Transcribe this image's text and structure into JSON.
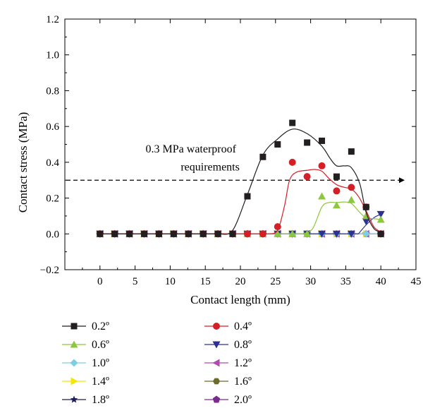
{
  "chart_data": {
    "type": "scatter",
    "title": "",
    "xlabel": "Contact length (mm)",
    "ylabel": "Contact stress (MPa)",
    "xlim": [
      -5,
      45
    ],
    "ylim": [
      -0.2,
      1.2
    ],
    "xticks": [
      0,
      5,
      10,
      15,
      20,
      25,
      30,
      35,
      40,
      45
    ],
    "yticks": [
      -0.2,
      0.0,
      0.2,
      0.4,
      0.6,
      0.8,
      1.0,
      1.2
    ],
    "ytick_labels": [
      "−0.2",
      "0.0",
      "0.2",
      "0.4",
      "0.6",
      "0.8",
      "1.0",
      "1.2"
    ],
    "grid": false,
    "legend_position": "bottom",
    "x": [
      0,
      2.1,
      4.2,
      6.3,
      8.4,
      10.5,
      12.6,
      14.7,
      16.8,
      18.9,
      21.0,
      23.2,
      25.3,
      27.4,
      29.5,
      31.6,
      33.7,
      35.8,
      37.9,
      40.0
    ],
    "series": [
      {
        "name": "0.2º",
        "marker": "square",
        "color": "#231f20",
        "line_color": "#231f20",
        "values": [
          0,
          0,
          0,
          0,
          0,
          0,
          0,
          0,
          0,
          0,
          0.21,
          0.43,
          0.5,
          0.62,
          0.51,
          0.52,
          0.32,
          0.46,
          0.15,
          0
        ],
        "fit": [
          [
            17.0,
            0
          ],
          [
            18.9,
            0.02
          ],
          [
            21.0,
            0.22
          ],
          [
            23.2,
            0.44
          ],
          [
            25.3,
            0.53
          ],
          [
            27.4,
            0.585
          ],
          [
            29.5,
            0.56
          ],
          [
            31.6,
            0.49
          ],
          [
            32.8,
            0.42
          ],
          [
            33.7,
            0.38
          ],
          [
            34.8,
            0.38
          ],
          [
            35.8,
            0.37
          ],
          [
            37.0,
            0.28
          ],
          [
            37.9,
            0.12
          ],
          [
            39.0,
            0.03
          ],
          [
            40.0,
            0.01
          ]
        ]
      },
      {
        "name": "0.4º",
        "marker": "circle",
        "color": "#d51f26",
        "line_color": "#d51f26",
        "values": [
          0,
          0,
          0,
          0,
          0,
          0,
          0,
          0,
          0,
          0,
          0,
          0,
          0.04,
          0.4,
          0.32,
          0.38,
          0.24,
          0.26,
          0.15,
          0
        ],
        "fit": [
          [
            24.0,
            0
          ],
          [
            25.3,
            0.02
          ],
          [
            26.3,
            0.16
          ],
          [
            27.0,
            0.3
          ],
          [
            28.0,
            0.345
          ],
          [
            29.5,
            0.355
          ],
          [
            30.6,
            0.36
          ],
          [
            31.6,
            0.35
          ],
          [
            32.6,
            0.31
          ],
          [
            33.7,
            0.275
          ],
          [
            34.8,
            0.26
          ],
          [
            35.8,
            0.25
          ],
          [
            36.8,
            0.21
          ],
          [
            37.9,
            0.13
          ],
          [
            39.0,
            0.04
          ],
          [
            40.0,
            0.01
          ]
        ]
      },
      {
        "name": "0.6º",
        "marker": "triangle-up",
        "color": "#8dc63f",
        "line_color": "#8dc63f",
        "values": [
          0,
          0,
          0,
          0,
          0,
          0,
          0,
          0,
          0,
          0,
          0,
          0,
          0,
          0,
          0,
          0.21,
          0.16,
          0.19,
          0.1,
          0.08
        ],
        "fit": [
          [
            29.0,
            0
          ],
          [
            30.3,
            0.03
          ],
          [
            31.6,
            0.15
          ],
          [
            32.6,
            0.175
          ],
          [
            33.7,
            0.175
          ],
          [
            34.8,
            0.178
          ],
          [
            35.8,
            0.17
          ],
          [
            37.0,
            0.12
          ],
          [
            37.9,
            0.09
          ],
          [
            39.0,
            0.085
          ],
          [
            40.0,
            0.08
          ]
        ]
      },
      {
        "name": "0.8º",
        "marker": "triangle-down",
        "color": "#2e3192",
        "line_color": "#2e3192",
        "values": [
          0,
          0,
          0,
          0,
          0,
          0,
          0,
          0,
          0,
          0,
          0,
          0,
          0,
          0,
          0,
          0,
          0,
          0,
          0.07,
          0.11
        ],
        "fit": [
          [
            36.8,
            0
          ],
          [
            37.9,
            0.05
          ],
          [
            39.0,
            0.09
          ],
          [
            40.0,
            0.11
          ]
        ]
      },
      {
        "name": "1.0º",
        "marker": "diamond",
        "color": "#7fcde3",
        "line_color": "#7fcde3",
        "values": [
          0,
          0,
          0,
          0,
          0,
          0,
          0,
          0,
          0,
          0,
          0,
          0,
          0,
          0,
          0,
          0,
          0,
          0,
          0,
          0
        ]
      },
      {
        "name": "1.2º",
        "marker": "triangle-left",
        "color": "#b04bb0",
        "line_color": "#b04bb0",
        "values": [
          0,
          0,
          0,
          0,
          0,
          0,
          0,
          0,
          0,
          0,
          0,
          0,
          0,
          0,
          0,
          0,
          0,
          0,
          0,
          0
        ]
      },
      {
        "name": "1.4º",
        "marker": "triangle-right",
        "color": "#f5e600",
        "line_color": "#f5e600",
        "values": [
          0,
          0,
          0,
          0,
          0,
          0,
          0,
          0,
          0,
          0,
          0,
          0,
          0,
          0,
          0,
          0,
          0,
          0,
          0,
          0
        ]
      },
      {
        "name": "1.6º",
        "marker": "hexagon",
        "color": "#6b6b2a",
        "line_color": "#6b6b2a",
        "values": [
          0,
          0,
          0,
          0,
          0,
          0,
          0,
          0,
          0,
          0,
          0,
          0,
          0,
          0,
          0,
          0,
          0,
          0,
          0,
          0
        ]
      },
      {
        "name": "1.8º",
        "marker": "star",
        "color": "#1c1c5a",
        "line_color": "#1c1c5a",
        "values": [
          0,
          0,
          0,
          0,
          0,
          0,
          0,
          0,
          0,
          0,
          0,
          0,
          0,
          0,
          0,
          0,
          0,
          0,
          0,
          0
        ]
      },
      {
        "name": "2.0º",
        "marker": "pentagon",
        "color": "#7b2a8e",
        "line_color": "#7b2a8e",
        "values": [
          0,
          0,
          0,
          0,
          0,
          0,
          0,
          0,
          0,
          0,
          0,
          0,
          0,
          0,
          0,
          0,
          0,
          0,
          0,
          0
        ]
      }
    ],
    "reference_line": {
      "y": 0.3,
      "x_start": -5,
      "x_end": 45,
      "style": "dashed",
      "arrow": true
    },
    "annotations": [
      {
        "text": "0.3 MPa waterproof",
        "x": 6.5,
        "y": 0.455
      },
      {
        "text": "requirements",
        "x": 11.5,
        "y": 0.355
      }
    ]
  }
}
